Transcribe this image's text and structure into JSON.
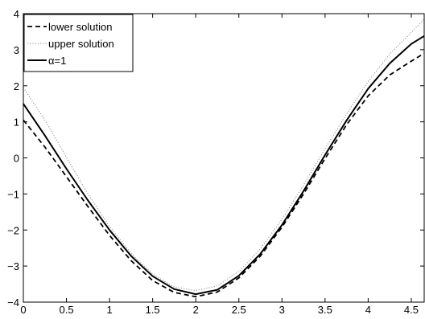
{
  "chart_data": {
    "type": "line",
    "title": "",
    "xlabel": "",
    "ylabel": "",
    "xlim": [
      0,
      4.65
    ],
    "ylim": [
      -4,
      4
    ],
    "xticks": [
      0,
      0.5,
      1,
      1.5,
      2,
      2.5,
      3,
      3.5,
      4,
      4.5
    ],
    "xtick_labels": [
      "0",
      "0.5",
      "1",
      "1.5",
      "2",
      "2.5",
      "3",
      "3.5",
      "4",
      "4.5"
    ],
    "yticks": [
      -4,
      -3,
      -2,
      -1,
      0,
      1,
      2,
      3,
      4
    ],
    "ytick_labels": [
      "−4",
      "−3",
      "−2",
      "−1",
      "0",
      "1",
      "2",
      "3",
      "4"
    ],
    "grid": false,
    "legend_position": "top-left",
    "series": [
      {
        "name": "lower solution",
        "style": "dashed",
        "color": "#000000",
        "x": [
          0,
          0.25,
          0.5,
          0.75,
          1.0,
          1.25,
          1.5,
          1.75,
          2.0,
          2.25,
          2.5,
          2.75,
          3.0,
          3.25,
          3.5,
          3.75,
          4.0,
          4.25,
          4.5,
          4.65
        ],
        "y": [
          1.05,
          0.3,
          -0.52,
          -1.35,
          -2.15,
          -2.85,
          -3.4,
          -3.73,
          -3.85,
          -3.72,
          -3.33,
          -2.72,
          -1.92,
          -1.0,
          -0.02,
          0.92,
          1.72,
          2.3,
          2.68,
          2.9
        ]
      },
      {
        "name": "upper solution",
        "style": "dotted",
        "color": "#000000",
        "x": [
          0,
          0.25,
          0.5,
          0.75,
          1.0,
          1.25,
          1.5,
          1.75,
          2.0,
          2.25,
          2.5,
          2.75,
          3.0,
          3.25,
          3.5,
          3.75,
          4.0,
          4.25,
          4.5,
          4.65
        ],
        "y": [
          1.95,
          1.05,
          0.02,
          -1.0,
          -1.9,
          -2.65,
          -3.22,
          -3.58,
          -3.68,
          -3.55,
          -3.15,
          -2.52,
          -1.7,
          -0.75,
          0.25,
          1.22,
          2.12,
          2.88,
          3.48,
          3.85
        ]
      },
      {
        "name": "α=1",
        "style": "solid",
        "color": "#000000",
        "x": [
          0,
          0.25,
          0.5,
          0.75,
          1.0,
          1.25,
          1.5,
          1.75,
          2.0,
          2.25,
          2.5,
          2.75,
          3.0,
          3.25,
          3.5,
          3.75,
          4.0,
          4.25,
          4.5,
          4.65
        ],
        "y": [
          1.5,
          0.62,
          -0.3,
          -1.18,
          -2.0,
          -2.72,
          -3.28,
          -3.64,
          -3.78,
          -3.66,
          -3.27,
          -2.66,
          -1.86,
          -0.92,
          0.08,
          1.04,
          1.92,
          2.62,
          3.16,
          3.38
        ]
      }
    ]
  }
}
